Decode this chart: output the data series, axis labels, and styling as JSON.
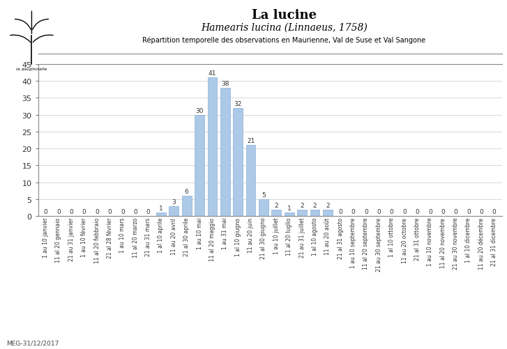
{
  "title1": "La lucine",
  "title2": "Hamearis lucina (Linnaeus, 1758)",
  "title3": "Répartition temporelle des observations en Maurienne, Val de Suse et Val Sangone",
  "footer": "MEG-31/12/2017",
  "bar_color": "#adc9e8",
  "bar_edge_color": "#8ab0d4",
  "ylim_max": 45,
  "yticks": [
    0,
    5,
    10,
    15,
    20,
    25,
    30,
    35,
    40,
    45
  ],
  "values": [
    0,
    0,
    0,
    0,
    0,
    0,
    0,
    0,
    0,
    1,
    3,
    6,
    30,
    41,
    38,
    32,
    21,
    5,
    2,
    1,
    2,
    2,
    2,
    0,
    0,
    0,
    0,
    0,
    0,
    0,
    0,
    0,
    0,
    0,
    0,
    0
  ],
  "labels": [
    "1 au 10 janvier",
    "11 al 20 gennaio",
    "21 au 31 janvier",
    "1 au 10 février",
    "11 al 20 febbraio",
    "21 al 28 février",
    "1 au 10 mars",
    "11 al 20 marzo",
    "21 au 31 mars",
    "1 al 10 aprile",
    "11 au 20 avril",
    "21 al 30 aprile",
    "1 au 10 mai",
    "11 al 20 maggio",
    "1 au 31 mai",
    "1 al 10 giugno",
    "11 au 20 juin",
    "21 al 30 giugno",
    "1 au 10 juillet",
    "11 al 20 luglio",
    "21 au 31 juillet",
    "1 al 10 agosto",
    "11 au 20 août",
    "21 al 31 agosto",
    "1 au 10 septembre",
    "11 al 20 septembre",
    "21 au 30 septembre",
    "1 al 10 ottobre",
    "11 au 20 octobre",
    "21 al 31 ottobre",
    "1 au 10 novembre",
    "11 al 20 novembre",
    "21 au 30 novembre",
    "1 al 10 dicembre",
    "11 au 20 décembre",
    "21 al 31 dicembre"
  ]
}
